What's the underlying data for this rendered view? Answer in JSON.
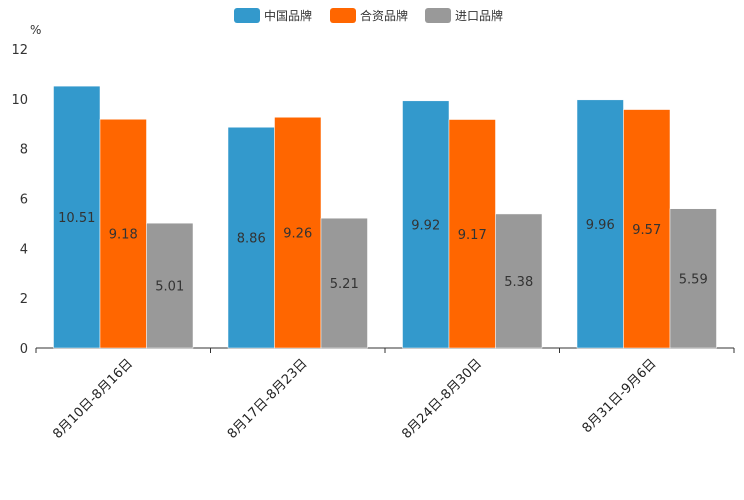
{
  "chart_data": {
    "type": "bar",
    "unit_label": "%",
    "categories": [
      "8月10日-8月16日",
      "8月17日-8月23日",
      "8月24日-8月30日",
      "8月31日-9月6日"
    ],
    "series": [
      {
        "name": "中国品牌",
        "color": "#3399cc",
        "values": [
          10.51,
          8.86,
          9.92,
          9.96
        ]
      },
      {
        "name": "合资品牌",
        "color": "#ff6600",
        "values": [
          9.18,
          9.26,
          9.17,
          9.57
        ]
      },
      {
        "name": "进口品牌",
        "color": "#999999",
        "values": [
          5.01,
          5.21,
          5.38,
          5.59
        ]
      }
    ],
    "ylim": [
      0,
      12
    ],
    "yticks": [
      0,
      2,
      4,
      6,
      8,
      10,
      12
    ],
    "legend_position": "top-center",
    "grid": false
  }
}
